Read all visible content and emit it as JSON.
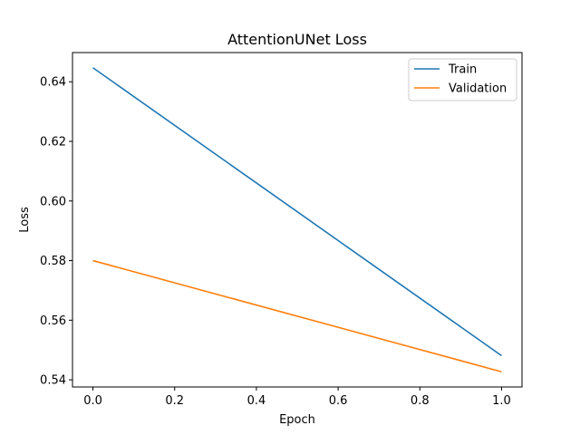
{
  "chart_data": {
    "type": "line",
    "title": "AttentionUNet Loss",
    "xlabel": "Epoch",
    "ylabel": "Loss",
    "xlim": [
      -0.05,
      1.05
    ],
    "ylim": [
      0.5376,
      0.6498
    ],
    "xticks": [
      0.0,
      0.2,
      0.4,
      0.6,
      0.8,
      1.0
    ],
    "xtick_labels": [
      "0.0",
      "0.2",
      "0.4",
      "0.6",
      "0.8",
      "1.0"
    ],
    "yticks": [
      0.54,
      0.56,
      0.58,
      0.6,
      0.62,
      0.64
    ],
    "ytick_labels": [
      "0.54",
      "0.56",
      "0.58",
      "0.60",
      "0.62",
      "0.64"
    ],
    "grid": false,
    "legend_position": "top-right",
    "x": [
      0,
      1
    ],
    "series": [
      {
        "name": "Train",
        "color": "#1f77b4",
        "values": [
          0.6447,
          0.5481
        ]
      },
      {
        "name": "Validation",
        "color": "#ff7f0e",
        "values": [
          0.58,
          0.5427
        ]
      }
    ]
  }
}
